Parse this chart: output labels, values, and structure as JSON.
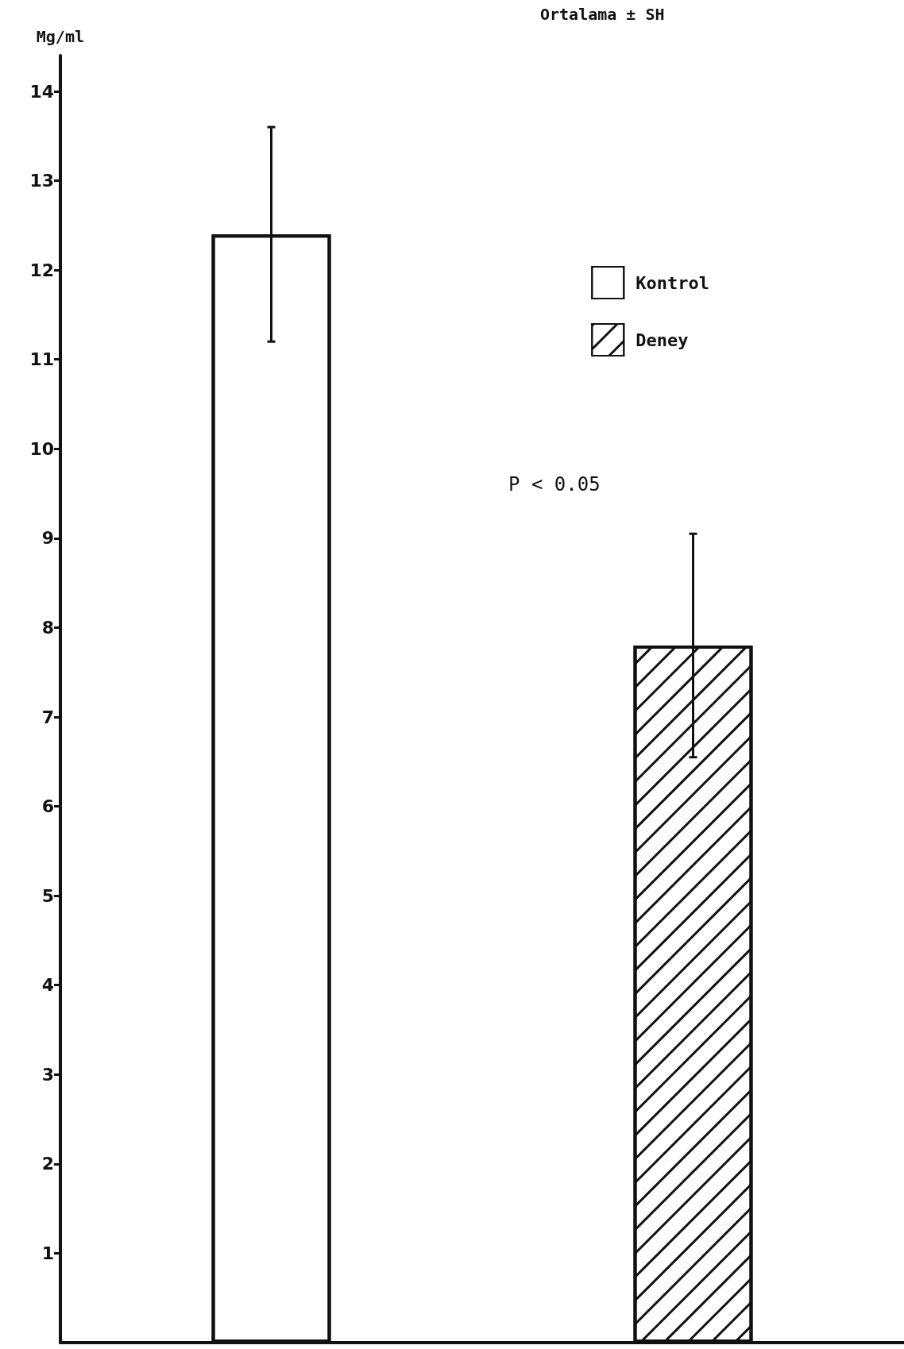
{
  "chart_data": {
    "type": "bar",
    "ylabel": "Mg/ml",
    "annotations": [
      "Ortalama ± SH",
      "P < 0.05"
    ],
    "categories": [
      null,
      null
    ],
    "stacked": true,
    "series": [
      {
        "name": "Kontrol",
        "color": "#ffffff",
        "values": [
          12.4,
          null
        ],
        "errors": [
          1.2,
          null
        ]
      },
      {
        "name": "Deney",
        "color": "#ffffff",
        "values": [
          null,
          7.8
        ],
        "errors": [
          null,
          1.25
        ]
      }
    ],
    "ylim": [
      0,
      14.4
    ],
    "yticks": [
      1,
      2,
      3,
      4,
      5,
      6,
      7,
      8,
      9,
      10,
      11,
      12,
      13,
      14
    ],
    "grid": false,
    "legend": "top right"
  }
}
